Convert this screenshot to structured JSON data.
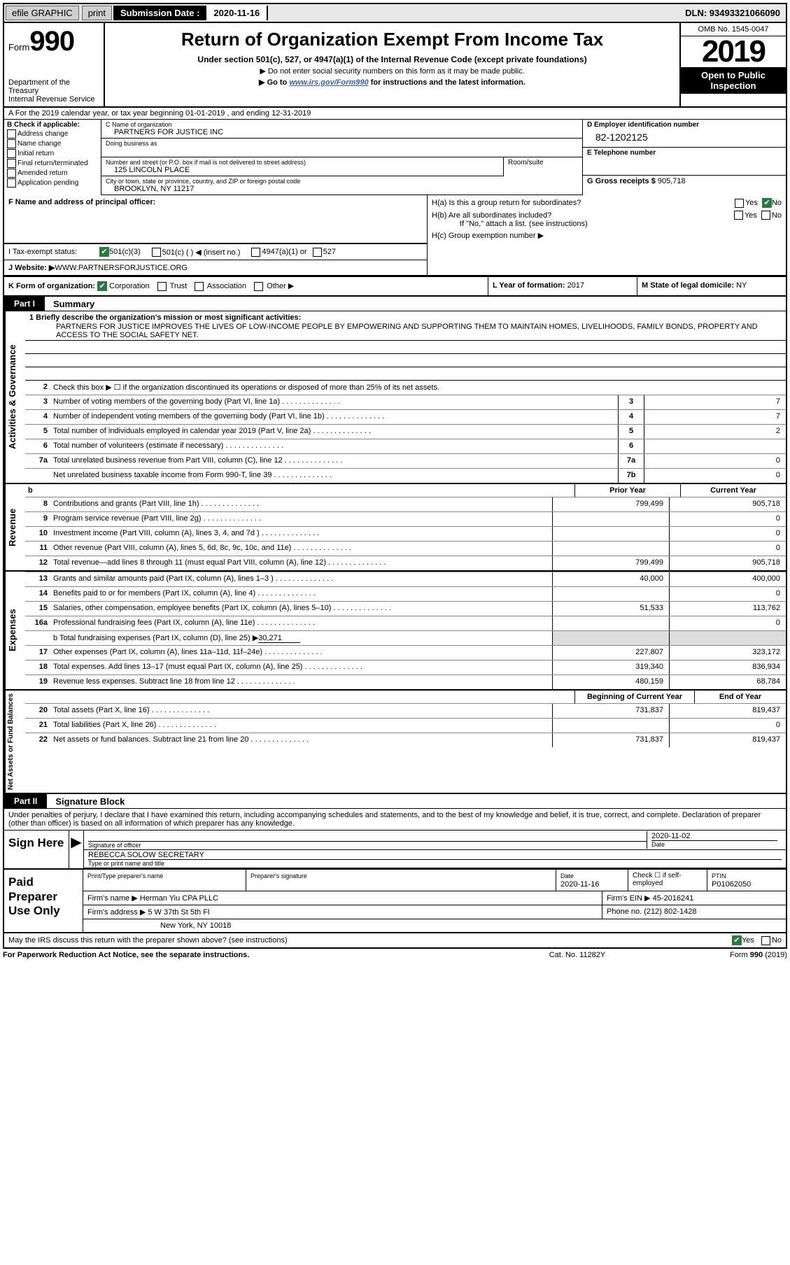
{
  "topbar": {
    "efile": "efile GRAPHIC",
    "print": "print",
    "sub_label": "Submission Date : 2020-11-16",
    "dln": "DLN: 93493321066090"
  },
  "header": {
    "form_prefix": "Form",
    "form_number": "990",
    "dept1": "Department of the Treasury",
    "dept2": "Internal Revenue Service",
    "title": "Return of Organization Exempt From Income Tax",
    "sub1": "Under section 501(c), 527, or 4947(a)(1) of the Internal Revenue Code (except private foundations)",
    "sub2": "▶ Do not enter social security numbers on this form as it may be made public.",
    "sub3_pre": "▶ Go to ",
    "sub3_link": "www.irs.gov/Form990",
    "sub3_post": " for instructions and the latest information.",
    "omb": "OMB No. 1545-0047",
    "year": "2019",
    "open1": "Open to Public",
    "open2": "Inspection"
  },
  "row_a": "A For the 2019 calendar year, or tax year beginning 01-01-2019   , and ending 12-31-2019",
  "col_b": {
    "title": "B Check if applicable:",
    "items": [
      "Address change",
      "Name change",
      "Initial return",
      "Final return/terminated",
      "Amended return",
      "Application pending"
    ]
  },
  "col_c": {
    "name_lbl": "C Name of organization",
    "name_val": "PARTNERS FOR JUSTICE INC",
    "dba_lbl": "Doing business as",
    "addr_lbl": "Number and street (or P.O. box if mail is not delivered to street address)",
    "addr_val": "125 LINCOLN PLACE",
    "room_lbl": "Room/suite",
    "city_lbl": "City or town, state or province, country, and ZIP or foreign postal code",
    "city_val": "BROOKLYN, NY  11217",
    "officer_lbl": "F  Name and address of principal officer:"
  },
  "col_d": {
    "ein_lbl": "D Employer identification number",
    "ein_val": "82-1202125",
    "phone_lbl": "E Telephone number",
    "gross_lbl": "G Gross receipts $ ",
    "gross_val": "905,718"
  },
  "row_h": {
    "ha": "H(a)  Is this a group return for subordinates?",
    "hb": "H(b)  Are all subordinates included?",
    "hb_note": "If \"No,\" attach a list. (see instructions)",
    "hc": "H(c)  Group exemption number ▶"
  },
  "row_i": "I    Tax-exempt status:",
  "row_i_opts": [
    "501(c)(3)",
    "501(c) (  ) ◀ (insert no.)",
    "4947(a)(1) or",
    "527"
  ],
  "row_j_lbl": "J   Website: ▶",
  "row_j_val": "  WWW.PARTNERSFORJUSTICE.ORG",
  "row_k": "K Form of organization:",
  "row_k_opts": [
    "Corporation",
    "Trust",
    "Association",
    "Other ▶"
  ],
  "row_l_lbl": "L Year of formation: ",
  "row_l_val": "2017",
  "row_m_lbl": "M State of legal domicile: ",
  "row_m_val": "NY",
  "part1": {
    "tab": "Part I",
    "title": "Summary"
  },
  "part2": {
    "tab": "Part II",
    "title": "Signature Block"
  },
  "vtabs": {
    "ag": "Activities & Governance",
    "rev": "Revenue",
    "exp": "Expenses",
    "na": "Net Assets or\nFund Balances"
  },
  "mission_lbl": "1  Briefly describe the organization's mission or most significant activities:",
  "mission_text": "PARTNERS FOR JUSTICE IMPROVES THE LIVES OF LOW-INCOME PEOPLE BY EMPOWERING AND SUPPORTING THEM TO MAINTAIN HOMES, LIVELIHOODS, FAMILY BONDS, PROPERTY AND ACCESS TO THE SOCIAL SAFETY NET.",
  "line2": "Check this box ▶ ☐  if the organization discontinued its operations or disposed of more than 25% of its net assets.",
  "lines_ag": [
    {
      "n": "3",
      "d": "Number of voting members of the governing body (Part VI, line 1a)",
      "b": "3",
      "v": "7"
    },
    {
      "n": "4",
      "d": "Number of independent voting members of the governing body (Part VI, line 1b)",
      "b": "4",
      "v": "7"
    },
    {
      "n": "5",
      "d": "Total number of individuals employed in calendar year 2019 (Part V, line 2a)",
      "b": "5",
      "v": "2"
    },
    {
      "n": "6",
      "d": "Total number of volunteers (estimate if necessary)",
      "b": "6",
      "v": ""
    },
    {
      "n": "7a",
      "d": "Total unrelated business revenue from Part VIII, column (C), line 12",
      "b": "7a",
      "v": "0"
    },
    {
      "n": "",
      "d": "Net unrelated business taxable income from Form 990-T, line 39",
      "b": "7b",
      "v": "0"
    }
  ],
  "col_hdr_b": "b",
  "col_hdr_prior": "Prior Year",
  "col_hdr_curr": "Current Year",
  "col_hdr_boy": "Beginning of Current Year",
  "col_hdr_eoy": "End of Year",
  "lines_rev": [
    {
      "n": "8",
      "d": "Contributions and grants (Part VIII, line 1h)",
      "p": "799,499",
      "c": "905,718"
    },
    {
      "n": "9",
      "d": "Program service revenue (Part VIII, line 2g)",
      "p": "",
      "c": "0"
    },
    {
      "n": "10",
      "d": "Investment income (Part VIII, column (A), lines 3, 4, and 7d )",
      "p": "",
      "c": "0"
    },
    {
      "n": "11",
      "d": "Other revenue (Part VIII, column (A), lines 5, 6d, 8c, 9c, 10c, and 11e)",
      "p": "",
      "c": "0"
    },
    {
      "n": "12",
      "d": "Total revenue—add lines 8 through 11 (must equal Part VIII, column (A), line 12)",
      "p": "799,499",
      "c": "905,718"
    }
  ],
  "lines_exp": [
    {
      "n": "13",
      "d": "Grants and similar amounts paid (Part IX, column (A), lines 1–3 )",
      "p": "40,000",
      "c": "400,000"
    },
    {
      "n": "14",
      "d": "Benefits paid to or for members (Part IX, column (A), line 4)",
      "p": "",
      "c": "0"
    },
    {
      "n": "15",
      "d": "Salaries, other compensation, employee benefits (Part IX, column (A), lines 5–10)",
      "p": "51,533",
      "c": "113,762"
    },
    {
      "n": "16a",
      "d": "Professional fundraising fees (Part IX, column (A), line 11e)",
      "p": "",
      "c": "0"
    }
  ],
  "line16b_pre": "b  Total fundraising expenses (Part IX, column (D), line 25) ▶",
  "line16b_val": "30,271",
  "lines_exp2": [
    {
      "n": "17",
      "d": "Other expenses (Part IX, column (A), lines 11a–11d, 11f–24e)",
      "p": "227,807",
      "c": "323,172"
    },
    {
      "n": "18",
      "d": "Total expenses. Add lines 13–17 (must equal Part IX, column (A), line 25)",
      "p": "319,340",
      "c": "836,934"
    },
    {
      "n": "19",
      "d": "Revenue less expenses. Subtract line 18 from line 12",
      "p": "480,159",
      "c": "68,784"
    }
  ],
  "lines_na": [
    {
      "n": "20",
      "d": "Total assets (Part X, line 16)",
      "p": "731,837",
      "c": "819,437"
    },
    {
      "n": "21",
      "d": "Total liabilities (Part X, line 26)",
      "p": "",
      "c": "0"
    },
    {
      "n": "22",
      "d": "Net assets or fund balances. Subtract line 21 from line 20",
      "p": "731,837",
      "c": "819,437"
    }
  ],
  "sig_pen": "Under penalties of perjury, I declare that I have examined this return, including accompanying schedules and statements, and to the best of my knowledge and belief, it is true, correct, and complete. Declaration of preparer (other than officer) is based on all information of which preparer has any knowledge.",
  "sign_here": "Sign Here",
  "sig_officer_lbl": "Signature of officer",
  "sig_date_lbl": "Date",
  "sig_date_val": "2020-11-02",
  "sig_name": "REBECCA SOLOW  SECRETARY",
  "sig_name_lbl": "Type or print name and title",
  "paid_prep": "Paid Preparer Use Only",
  "prep": {
    "name_lbl": "Print/Type preparer's name",
    "sig_lbl": "Preparer's signature",
    "date_lbl": "Date",
    "date_val": "2020-11-16",
    "check_lbl": "Check ☐ if self-employed",
    "ptin_lbl": "PTIN",
    "ptin_val": "P01062050",
    "firm_lbl": "Firm's name    ▶",
    "firm_val": "Herman Yiu CPA PLLC",
    "ein_lbl": "Firm's EIN ▶ ",
    "ein_val": "45-2016241",
    "addr_lbl": "Firm's address ▶",
    "addr_val1": "5 W 37th St 5th Fl",
    "addr_val2": "New York, NY  10018",
    "phone_lbl": "Phone no. ",
    "phone_val": "(212) 802-1428"
  },
  "discuss": "May the IRS discuss this return with the preparer shown above? (see instructions)",
  "footer": {
    "l": "For Paperwork Reduction Act Notice, see the separate instructions.",
    "c": "Cat. No. 11282Y",
    "r": "Form 990 (2019)"
  }
}
